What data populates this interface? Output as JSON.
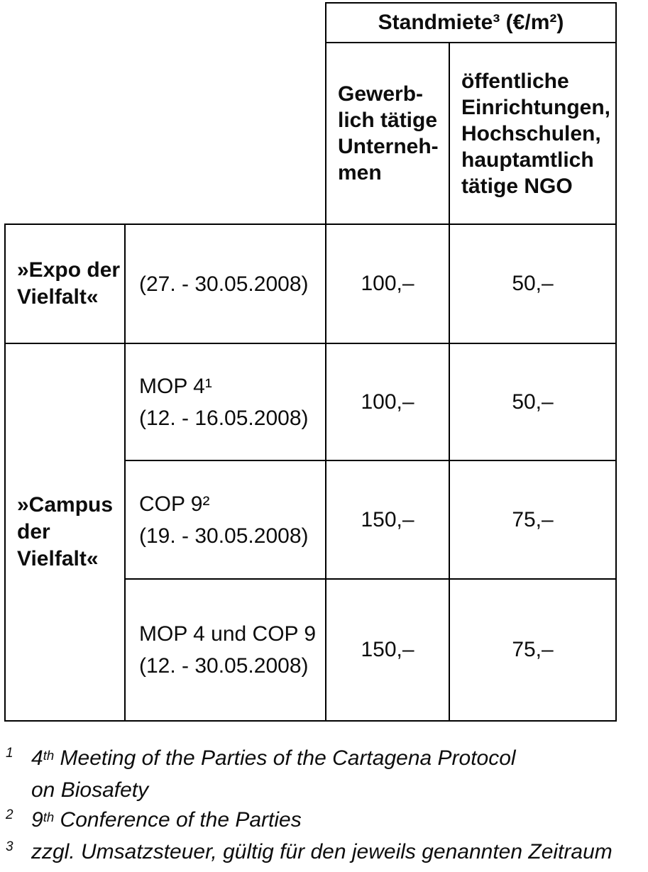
{
  "colors": {
    "background": "#ffffff",
    "text": "#0d0d0d",
    "border": "#000000"
  },
  "table": {
    "spanning_header": "Standmiete³ (€/m²)",
    "col_headers": [
      "Gewerb-\nlich tätige\nUnterneh-\nmen",
      "öffentliche\nEinrichtungen,\nHochschulen,\nhauptamtlich\ntätige NGO"
    ],
    "row_groups": [
      {
        "label": "»Expo der\nVielfalt«",
        "rows": [
          {
            "event": "(27. - 30.05.2008)",
            "price_commercial": "100,–",
            "price_public": "50,–"
          }
        ]
      },
      {
        "label": "»Campus\nder\nVielfalt«",
        "rows": [
          {
            "event": "MOP 4¹\n(12. - 16.05.2008)",
            "price_commercial": "100,–",
            "price_public": "50,–"
          },
          {
            "event": "COP 9²\n(19. - 30.05.2008)",
            "price_commercial": "150,–",
            "price_public": "75,–"
          },
          {
            "event": "MOP 4 und COP 9\n(12. - 30.05.2008)",
            "price_commercial": "150,–",
            "price_public": "75,–"
          }
        ]
      }
    ]
  },
  "footnotes": [
    {
      "marker": "1",
      "prefix": "4",
      "sup": "th",
      "text": " Meeting of the Parties of the Cartagena Protocol",
      "text2": "on Biosafety"
    },
    {
      "marker": "2",
      "prefix": "9",
      "sup": "th",
      "text": " Conference of the Parties",
      "text2": ""
    },
    {
      "marker": "3",
      "prefix": "",
      "sup": "",
      "text": "zzgl. Umsatzsteuer, gültig für den jeweils genannten Zeitraum",
      "text2": ""
    }
  ]
}
